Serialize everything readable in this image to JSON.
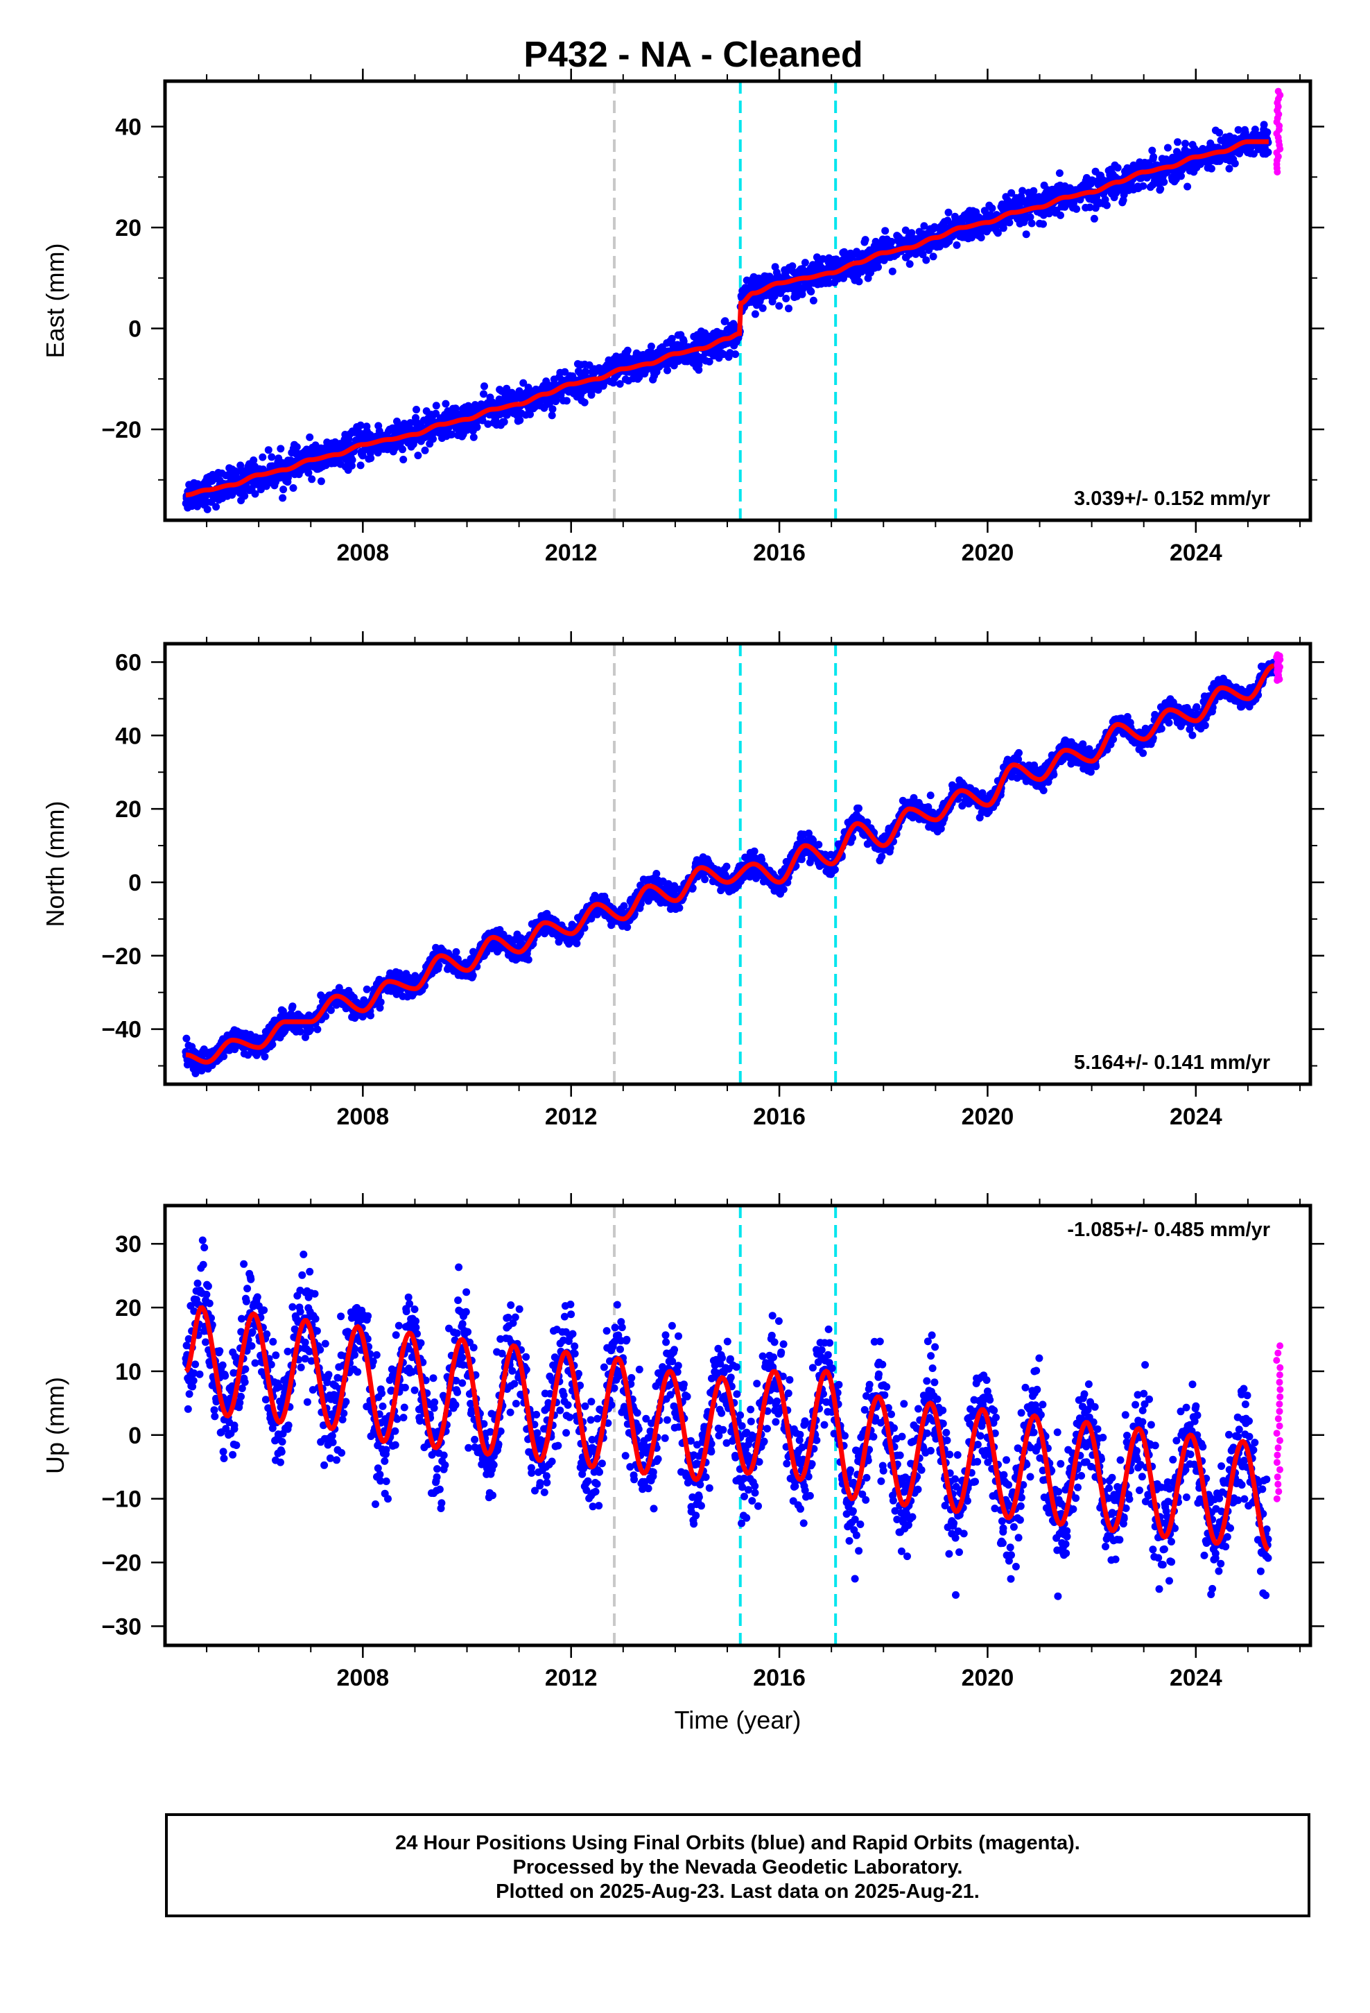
{
  "title": "P432  - NA - Cleaned",
  "footer": [
    "24 Hour Positions Using Final Orbits (blue) and Rapid Orbits (magenta).",
    "Processed by the Nevada Geodetic Laboratory.",
    "Plotted on 2025-Aug-23. Last data on 2025-Aug-21."
  ],
  "colors": {
    "final_orbits": "#0000ff",
    "rapid_orbits": "#ff00ff",
    "model_fit": "#ff0000",
    "event_gray": "#c8c8c8",
    "event_cyan": "#00e5ee"
  },
  "chart_data": [
    {
      "type": "scatter",
      "ylabel": "East (mm)",
      "xlabel": "",
      "xlim": [
        2004.2,
        2026.2
      ],
      "ylim": [
        -38,
        49
      ],
      "xticks": [
        "2008",
        "2012",
        "2016",
        "2020",
        "2024"
      ],
      "yticks": [
        "40",
        "20",
        "0",
        "−20"
      ],
      "rate_text": "3.039+/- 0.152 mm/yr",
      "rate_position": "bottom-right",
      "events": [
        {
          "x": 2012.83,
          "color": "gray"
        },
        {
          "x": 2015.25,
          "color": "cyan"
        },
        {
          "x": 2017.08,
          "color": "cyan"
        }
      ],
      "series": [
        {
          "name": "Final Orbits",
          "color": "blue",
          "x": [
            2004.6,
            2005.0,
            2005.5,
            2006.0,
            2006.5,
            2007.0,
            2007.5,
            2008.0,
            2008.5,
            2009.0,
            2009.5,
            2010.0,
            2010.5,
            2011.0,
            2011.5,
            2012.0,
            2012.5,
            2013.0,
            2013.5,
            2014.0,
            2014.5,
            2015.0,
            2015.24,
            2015.26,
            2015.5,
            2016.0,
            2016.5,
            2017.0,
            2017.5,
            2018.0,
            2018.5,
            2019.0,
            2019.5,
            2020.0,
            2020.5,
            2021.0,
            2021.5,
            2022.0,
            2022.5,
            2023.0,
            2023.5,
            2024.0,
            2024.5,
            2025.0,
            2025.4
          ],
          "y": [
            -33,
            -32,
            -31,
            -29,
            -28,
            -26,
            -25,
            -23,
            -22,
            -21,
            -19,
            -18,
            -16,
            -15,
            -13,
            -11,
            -10,
            -8,
            -7,
            -5,
            -4,
            -2,
            -1,
            5,
            7,
            9,
            10,
            11,
            13,
            15,
            16,
            18,
            20,
            21,
            23,
            24,
            26,
            27,
            29,
            31,
            32,
            34,
            35,
            37,
            37
          ]
        },
        {
          "name": "Rapid Orbits",
          "color": "magenta",
          "x": [
            2025.55,
            2025.6,
            2025.62
          ],
          "y": [
            47,
            38,
            31
          ]
        }
      ]
    },
    {
      "type": "scatter",
      "ylabel": "North (mm)",
      "xlabel": "",
      "xlim": [
        2004.2,
        2026.2
      ],
      "ylim": [
        -55,
        65
      ],
      "xticks": [
        "2008",
        "2012",
        "2016",
        "2020",
        "2024"
      ],
      "yticks": [
        "60",
        "40",
        "20",
        "0",
        "−20",
        "−40"
      ],
      "rate_text": "5.164+/- 0.141 mm/yr",
      "rate_position": "bottom-right",
      "events": [
        {
          "x": 2012.83,
          "color": "gray"
        },
        {
          "x": 2015.25,
          "color": "cyan"
        },
        {
          "x": 2017.08,
          "color": "cyan"
        }
      ],
      "series": [
        {
          "name": "Final Orbits",
          "color": "blue",
          "x": [
            2004.6,
            2005.0,
            2005.5,
            2006.0,
            2006.5,
            2007.0,
            2007.5,
            2008.0,
            2008.5,
            2009.0,
            2009.5,
            2010.0,
            2010.5,
            2011.0,
            2011.5,
            2012.0,
            2012.5,
            2013.0,
            2013.5,
            2014.0,
            2014.5,
            2015.0,
            2015.5,
            2016.0,
            2016.5,
            2017.0,
            2017.5,
            2018.0,
            2018.5,
            2019.0,
            2019.5,
            2020.0,
            2020.5,
            2021.0,
            2021.5,
            2022.0,
            2022.5,
            2023.0,
            2023.5,
            2024.0,
            2024.5,
            2025.0,
            2025.5
          ],
          "y": [
            -47,
            -49,
            -43,
            -45,
            -38,
            -38,
            -31,
            -35,
            -27,
            -29,
            -20,
            -24,
            -15,
            -19,
            -11,
            -14,
            -6,
            -10,
            -1,
            -5,
            4,
            0,
            5,
            0,
            10,
            5,
            16,
            10,
            20,
            17,
            25,
            21,
            32,
            28,
            36,
            33,
            43,
            39,
            47,
            44,
            53,
            50,
            59
          ]
        },
        {
          "name": "Rapid Orbits",
          "color": "magenta",
          "x": [
            2025.55,
            2025.6,
            2025.62
          ],
          "y": [
            62,
            58,
            55
          ]
        }
      ]
    },
    {
      "type": "scatter",
      "ylabel": "Up (mm)",
      "xlabel": "Time (year)",
      "xlim": [
        2004.2,
        2026.2
      ],
      "ylim": [
        -33,
        36
      ],
      "xticks": [
        "2008",
        "2012",
        "2016",
        "2020",
        "2024"
      ],
      "yticks": [
        "30",
        "20",
        "10",
        "0",
        "−10",
        "−20",
        "−30"
      ],
      "rate_text": "-1.085+/- 0.485 mm/yr",
      "rate_position": "top-right",
      "events": [
        {
          "x": 2012.83,
          "color": "gray"
        },
        {
          "x": 2015.25,
          "color": "cyan"
        },
        {
          "x": 2017.08,
          "color": "cyan"
        }
      ],
      "series": [
        {
          "name": "Final Orbits",
          "color": "blue",
          "x": [
            2004.6,
            2004.9,
            2005.4,
            2005.9,
            2006.4,
            2006.9,
            2007.4,
            2007.9,
            2008.4,
            2008.9,
            2009.4,
            2009.9,
            2010.4,
            2010.9,
            2011.4,
            2011.9,
            2012.4,
            2012.9,
            2013.4,
            2013.9,
            2014.4,
            2014.9,
            2015.4,
            2015.9,
            2016.4,
            2016.9,
            2017.4,
            2017.9,
            2018.4,
            2018.9,
            2019.4,
            2019.9,
            2020.4,
            2020.9,
            2021.4,
            2021.9,
            2022.4,
            2022.9,
            2023.4,
            2023.9,
            2024.4,
            2024.9,
            2025.4
          ],
          "y": [
            10,
            20,
            3,
            19,
            2,
            18,
            1,
            17,
            -1,
            16,
            -2,
            15,
            -3,
            14,
            -4,
            13,
            -5,
            12,
            -6,
            10,
            -7,
            9,
            -6,
            10,
            -7,
            10,
            -10,
            6,
            -11,
            5,
            -12,
            4,
            -13,
            3,
            -14,
            2,
            -15,
            1,
            -16,
            0,
            -17,
            -1,
            -18
          ]
        },
        {
          "name": "Rapid Orbits",
          "color": "magenta",
          "x": [
            2025.55,
            2025.6,
            2025.62
          ],
          "y": [
            14,
            3,
            -10
          ]
        }
      ]
    }
  ]
}
